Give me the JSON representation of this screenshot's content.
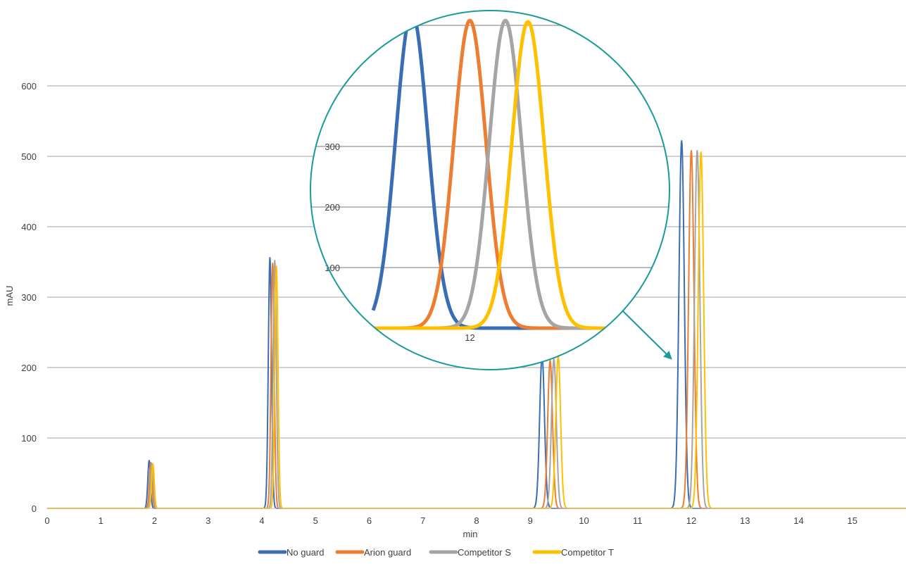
{
  "chart_data": {
    "type": "line",
    "xlabel": "min",
    "ylabel": "mAU",
    "xlim": [
      0,
      16
    ],
    "ylim": [
      0,
      700
    ],
    "x_ticks": [
      0,
      1,
      2,
      3,
      4,
      5,
      6,
      7,
      8,
      9,
      10,
      11,
      12,
      13,
      14,
      15
    ],
    "y_ticks": [
      0,
      100,
      200,
      300,
      400,
      500,
      600
    ],
    "grid": "horizontal",
    "legend_position": "bottom",
    "series": [
      {
        "name": "No guard",
        "color": "#3a6db5",
        "peaks": [
          {
            "rt": 1.9,
            "height": 68,
            "sigma": 0.025
          },
          {
            "rt": 4.15,
            "height": 356,
            "sigma": 0.03
          },
          {
            "rt": 9.22,
            "height": 217,
            "sigma": 0.045
          },
          {
            "rt": 11.82,
            "height": 522,
            "sigma": 0.05
          }
        ]
      },
      {
        "name": "Arion guard",
        "color": "#ed7d31",
        "peaks": [
          {
            "rt": 1.93,
            "height": 65,
            "sigma": 0.025
          },
          {
            "rt": 4.2,
            "height": 348,
            "sigma": 0.03
          },
          {
            "rt": 9.37,
            "height": 210,
            "sigma": 0.045
          },
          {
            "rt": 12.0,
            "height": 508,
            "sigma": 0.05
          }
        ]
      },
      {
        "name": "Competitor S",
        "color": "#a5a5a5",
        "peaks": [
          {
            "rt": 1.95,
            "height": 64,
            "sigma": 0.025
          },
          {
            "rt": 4.24,
            "height": 352,
            "sigma": 0.03
          },
          {
            "rt": 9.44,
            "height": 212,
            "sigma": 0.045
          },
          {
            "rt": 12.11,
            "height": 508,
            "sigma": 0.05
          }
        ]
      },
      {
        "name": "Competitor T",
        "color": "#ffc000",
        "peaks": [
          {
            "rt": 1.97,
            "height": 63,
            "sigma": 0.025
          },
          {
            "rt": 4.27,
            "height": 344,
            "sigma": 0.03
          },
          {
            "rt": 9.52,
            "height": 216,
            "sigma": 0.045
          },
          {
            "rt": 12.18,
            "height": 506,
            "sigma": 0.05
          }
        ]
      }
    ],
    "inset": {
      "type": "line",
      "description": "zoom on peak near 12 min",
      "xlim": [
        11.7,
        12.42
      ],
      "ylim": [
        0,
        500
      ],
      "x_ticks": [
        12
      ],
      "y_ticks": [
        100,
        200,
        300
      ],
      "border_color": "#1a9a9a"
    }
  }
}
